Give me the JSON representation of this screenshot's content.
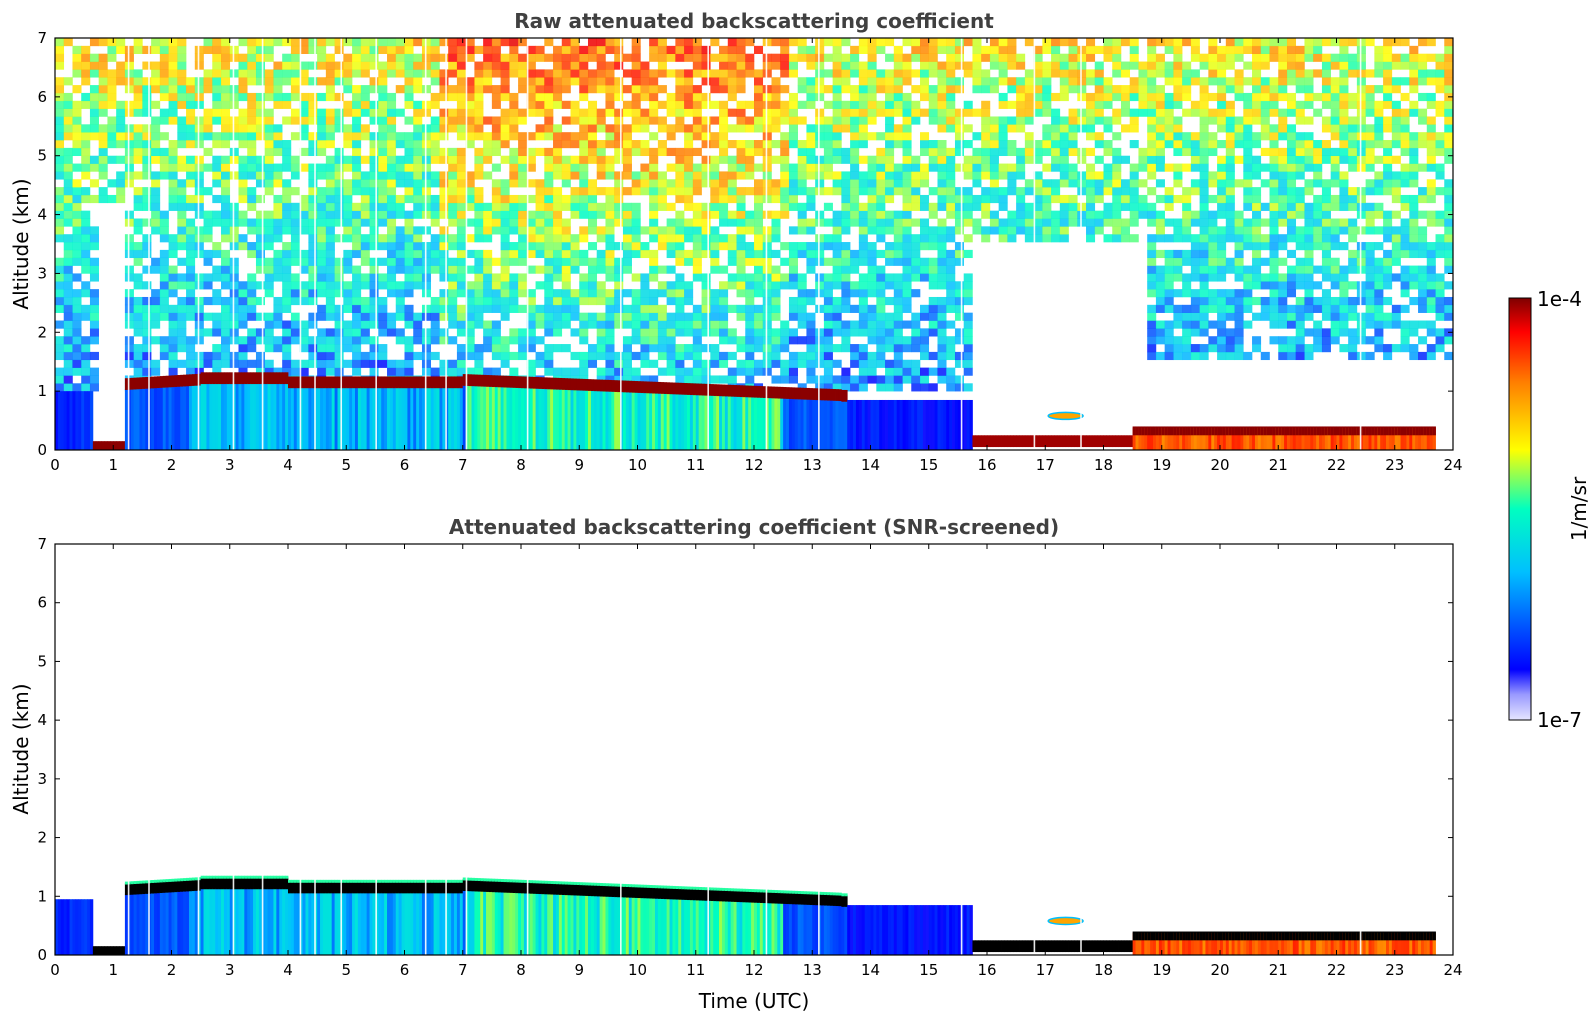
{
  "colors": {
    "jet_stops": [
      "#e6e6ff",
      "#0000ff",
      "#00bfff",
      "#00ffc0",
      "#ffff00",
      "#ff7f00",
      "#ff0000",
      "#7f0000"
    ],
    "black_layer": "#000000",
    "title_color": "#404040"
  },
  "colorbar": {
    "max_label": "1e-4",
    "min_label": "1e-7",
    "unit_label": "1/m/sr"
  },
  "chart_data": [
    {
      "type": "heatmap",
      "title": "Raw attenuated backscattering coefficient",
      "xlabel": "",
      "ylabel": "Altitude (km)",
      "xlim": [
        0,
        24
      ],
      "ylim": [
        0,
        7
      ],
      "xticks": [
        "0",
        "1",
        "2",
        "3",
        "4",
        "5",
        "6",
        "7",
        "8",
        "9",
        "10",
        "11",
        "12",
        "13",
        "14",
        "15",
        "16",
        "17",
        "18",
        "19",
        "20",
        "21",
        "22",
        "23",
        "24"
      ],
      "yticks": [
        "0",
        "1",
        "2",
        "3",
        "4",
        "5",
        "6",
        "7"
      ],
      "colorscale": "jet, log10, 1e-7 to 1e-4 1/m/sr",
      "grid": false
    },
    {
      "type": "heatmap",
      "title": "Attenuated backscattering coefficient (SNR-screened)",
      "xlabel": "Time (UTC)",
      "ylabel": "Altitude (km)",
      "xlim": [
        0,
        24
      ],
      "ylim": [
        0,
        7
      ],
      "xticks": [
        "0",
        "1",
        "2",
        "3",
        "4",
        "5",
        "6",
        "7",
        "8",
        "9",
        "10",
        "11",
        "12",
        "13",
        "14",
        "15",
        "16",
        "17",
        "18",
        "19",
        "20",
        "21",
        "22",
        "23",
        "24"
      ],
      "yticks": [
        "0",
        "1",
        "2",
        "3",
        "4",
        "5",
        "6",
        "7"
      ],
      "colorscale": "jet, log10, 1e-7 to 1e-4 1/m/sr",
      "grid": false
    }
  ]
}
